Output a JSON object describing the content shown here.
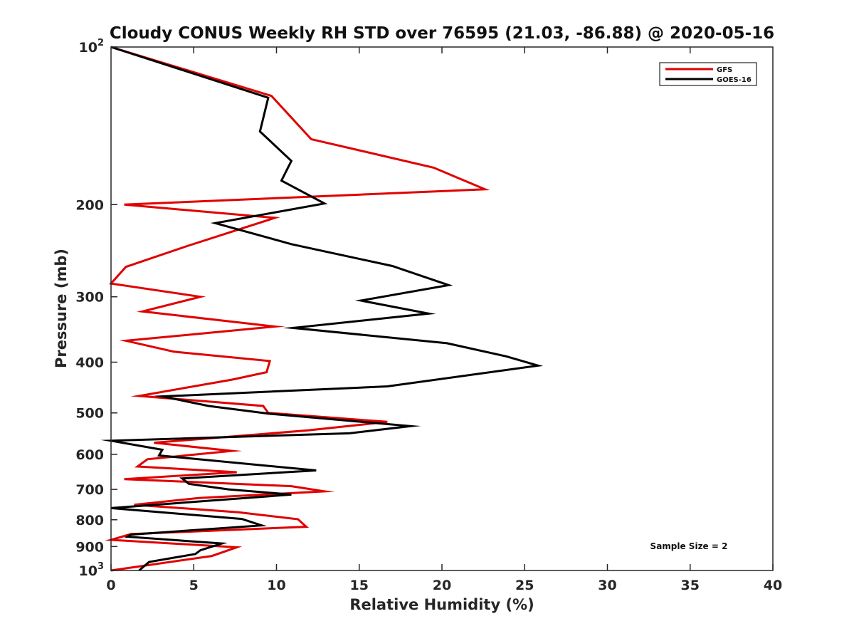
{
  "chart_data": {
    "type": "line",
    "title": "Cloudy CONUS Weekly RH STD over 76595 (21.03, -86.88) @ 2020-05-16",
    "xlabel": "Relative Humidity (%)",
    "ylabel": "Pressure (mb)",
    "xlim": [
      0,
      40
    ],
    "ylim": [
      100,
      1000
    ],
    "yscale": "log",
    "y_reversed": true,
    "xticks": [
      0,
      5,
      10,
      15,
      20,
      25,
      30,
      35,
      40
    ],
    "yticks": [
      {
        "value": 100,
        "base": "10",
        "exp": "2"
      },
      {
        "value": 200,
        "label": "200"
      },
      {
        "value": 300,
        "label": "300"
      },
      {
        "value": 400,
        "label": "400"
      },
      {
        "value": 500,
        "label": "500"
      },
      {
        "value": 600,
        "label": "600"
      },
      {
        "value": 700,
        "label": "700"
      },
      {
        "value": 800,
        "label": "800"
      },
      {
        "value": 900,
        "label": "900"
      },
      {
        "value": 1000,
        "base": "10",
        "exp": "3"
      }
    ],
    "legend_position": "top-right",
    "annotation": "Sample Size = 2",
    "series": [
      {
        "name": "GFS",
        "color": "#e00000",
        "points": [
          [
            0,
            100
          ],
          [
            9.7,
            124
          ],
          [
            12.1,
            150
          ],
          [
            19.5,
            170
          ],
          [
            22.6,
            187
          ],
          [
            0.8,
            200
          ],
          [
            9.9,
            212
          ],
          [
            4.6,
            240
          ],
          [
            0.9,
            263
          ],
          [
            0,
            283
          ],
          [
            5.4,
            300
          ],
          [
            1.9,
            320
          ],
          [
            9.9,
            342
          ],
          [
            0.9,
            364
          ],
          [
            3.8,
            382
          ],
          [
            9.6,
            398
          ],
          [
            9.4,
            418
          ],
          [
            7.3,
            432
          ],
          [
            1.7,
            464
          ],
          [
            9.2,
            485
          ],
          [
            9.5,
            500
          ],
          [
            16.7,
            520
          ],
          [
            11.9,
            540
          ],
          [
            2.6,
            570
          ],
          [
            7.3,
            591
          ],
          [
            2.2,
            613
          ],
          [
            1.6,
            633
          ],
          [
            7.6,
            649
          ],
          [
            0.8,
            669
          ],
          [
            10.9,
            690
          ],
          [
            12.9,
            706
          ],
          [
            5.3,
            727
          ],
          [
            1.4,
            749
          ],
          [
            7.7,
            774
          ],
          [
            11.3,
            798
          ],
          [
            11.8,
            825
          ],
          [
            1.2,
            852
          ],
          [
            0,
            874
          ],
          [
            7.6,
            903
          ],
          [
            6.1,
            938
          ],
          [
            0,
            1000
          ]
        ]
      },
      {
        "name": "GOES-16",
        "color": "#000000",
        "points": [
          [
            0,
            100
          ],
          [
            9.5,
            125
          ],
          [
            9.0,
            145
          ],
          [
            10.9,
            165
          ],
          [
            10.3,
            180
          ],
          [
            12.9,
            199
          ],
          [
            6.3,
            217
          ],
          [
            10.9,
            238
          ],
          [
            17.0,
            262
          ],
          [
            20.4,
            285
          ],
          [
            15.1,
            305
          ],
          [
            19.2,
            323
          ],
          [
            11.0,
            344
          ],
          [
            20.3,
            368
          ],
          [
            23.9,
            390
          ],
          [
            25.8,
            406
          ],
          [
            16.7,
            445
          ],
          [
            3.1,
            465
          ],
          [
            5.9,
            485
          ],
          [
            9.6,
            502
          ],
          [
            18.1,
            530
          ],
          [
            14.4,
            547
          ],
          [
            0,
            565
          ],
          [
            3.1,
            588
          ],
          [
            2.9,
            603
          ],
          [
            12.4,
            644
          ],
          [
            4.3,
            667
          ],
          [
            4.7,
            683
          ],
          [
            7.1,
            700
          ],
          [
            10.9,
            716
          ],
          [
            6.6,
            733
          ],
          [
            0,
            760
          ],
          [
            7.9,
            797
          ],
          [
            9.1,
            820
          ],
          [
            1.2,
            854
          ],
          [
            1.0,
            862
          ],
          [
            6.7,
            888
          ],
          [
            5.4,
            915
          ],
          [
            5.1,
            930
          ],
          [
            2.3,
            963
          ],
          [
            1.7,
            1000
          ]
        ]
      }
    ]
  }
}
